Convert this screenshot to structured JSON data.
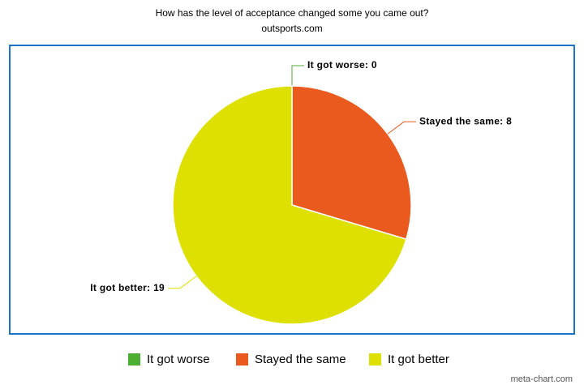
{
  "chart_data": {
    "type": "pie",
    "title": "How has the level of acceptance changed some you came out?",
    "subtitle": "outsports.com",
    "credit": "meta-chart.com",
    "categories": [
      "It got worse",
      "Stayed the same",
      "It got better"
    ],
    "values": [
      0,
      8,
      19
    ],
    "value_labels": [
      "It got worse: 0",
      "Stayed the same: 8",
      "It got better: 19"
    ],
    "colors": [
      "#4caf32",
      "#ea5a1f",
      "#dde000"
    ],
    "legend": "bottom"
  }
}
